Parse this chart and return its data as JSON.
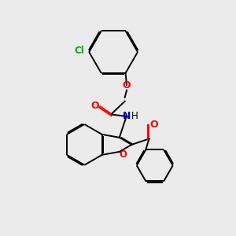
{
  "bg_color": "#ebebeb",
  "bond_color": "#000000",
  "o_color": "#ff0000",
  "n_color": "#0000cd",
  "cl_color": "#00aa00",
  "lw": 1.4,
  "dbo": 0.055,
  "figsize": [
    3.0,
    3.0
  ],
  "dpi": 100,
  "xlim": [
    0,
    10
  ],
  "ylim": [
    0,
    10
  ]
}
